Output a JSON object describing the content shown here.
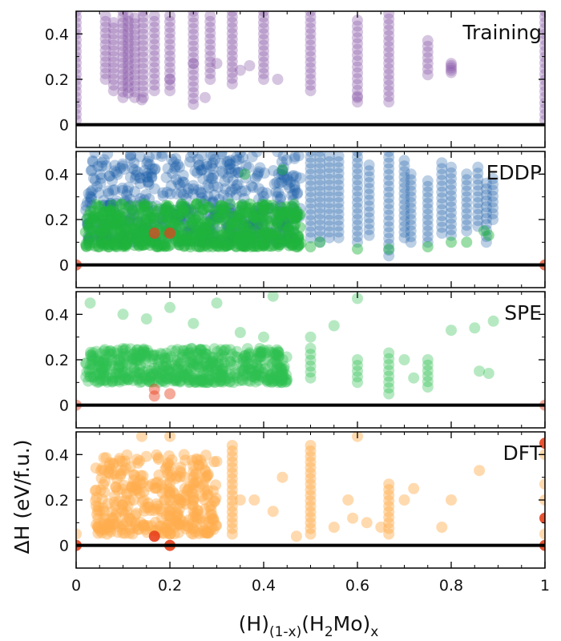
{
  "chart_data": {
    "type": "scatter",
    "xlabel": {
      "base": "(H)",
      "sub1": "(1-x)",
      "mid": "(H",
      "sub2": "2",
      "tail": "Mo)",
      "sub3": "x"
    },
    "ylabel": "ΔH (eV/f.u.)",
    "xlim": [
      0,
      1
    ],
    "ylim": [
      -0.1,
      0.5
    ],
    "x_ticks": [
      0,
      0.2,
      0.4,
      0.6,
      0.8,
      1
    ],
    "x_tick_labels": [
      "0",
      "0.2",
      "0.4",
      "0.6",
      "0.8",
      "1"
    ],
    "y_ticks": [
      0,
      0.2,
      0.4
    ],
    "y_tick_labels": [
      "0",
      "0.2",
      "0.4"
    ],
    "hull_line": {
      "y": 0,
      "color": "#000000"
    },
    "colors": {
      "training": "#8a5aa8",
      "eddp_blue": "#1f5fa8",
      "eddp_green": "#1fb33c",
      "spe": "#2fbf4f",
      "dft": "#ffad4d",
      "hull_red": "#e8401c"
    },
    "panels": [
      {
        "label": "Training",
        "series": [
          {
            "name": "training",
            "color": "#8a5aa8",
            "alpha": 0.35,
            "columns": [
              [
                0.0,
                0.02,
                0.5
              ],
              [
                0.0625,
                0.2,
                0.48
              ],
              [
                0.08,
                0.15,
                0.45
              ],
              [
                0.1,
                0.12,
                0.5
              ],
              [
                0.111,
                0.14,
                0.48
              ],
              [
                0.125,
                0.12,
                0.47
              ],
              [
                0.143,
                0.12,
                0.5
              ],
              [
                0.167,
                0.15,
                0.48
              ],
              [
                0.2,
                0.15,
                0.48
              ],
              [
                0.25,
                0.09,
                0.5
              ],
              [
                0.286,
                0.2,
                0.48
              ],
              [
                0.333,
                0.18,
                0.5
              ],
              [
                0.4,
                0.2,
                0.5
              ],
              [
                0.5,
                0.15,
                0.5
              ],
              [
                0.6,
                0.1,
                0.46
              ],
              [
                0.667,
                0.1,
                0.49
              ],
              [
                0.75,
                0.22,
                0.37
              ],
              [
                0.8,
                0.23,
                0.27
              ],
              [
                1.0,
                0.02,
                0.5
              ]
            ],
            "points": [
              [
                0.14,
                0.11
              ],
              [
                0.2,
                0.2
              ],
              [
                0.25,
                0.27
              ],
              [
                0.3,
                0.27
              ],
              [
                0.35,
                0.24
              ],
              [
                0.37,
                0.26
              ],
              [
                0.43,
                0.2
              ],
              [
                0.6,
                0.12
              ],
              [
                0.275,
                0.12
              ]
            ]
          }
        ]
      },
      {
        "label": "EDDP",
        "series": [
          {
            "name": "eddp-blue",
            "color": "#1f5fa8",
            "alpha": 0.3,
            "band": {
              "x0": 0.02,
              "x1": 0.48,
              "ymin": 0.1,
              "ymax": 0.5
            },
            "columns": [
              [
                0.5,
                0.12,
                0.5
              ],
              [
                0.52,
                0.1,
                0.5
              ],
              [
                0.54,
                0.12,
                0.48
              ],
              [
                0.56,
                0.12,
                0.48
              ],
              [
                0.6,
                0.1,
                0.5
              ],
              [
                0.625,
                0.13,
                0.44
              ],
              [
                0.667,
                0.04,
                0.5
              ],
              [
                0.7,
                0.12,
                0.46
              ],
              [
                0.714,
                0.1,
                0.4
              ],
              [
                0.75,
                0.1,
                0.37
              ],
              [
                0.78,
                0.14,
                0.45
              ],
              [
                0.8,
                0.13,
                0.43
              ],
              [
                0.833,
                0.15,
                0.4
              ],
              [
                0.857,
                0.17,
                0.43
              ],
              [
                0.875,
                0.1,
                0.36
              ],
              [
                0.889,
                0.2,
                0.38
              ]
            ]
          },
          {
            "name": "eddp-green",
            "color": "#1fb33c",
            "alpha": 0.45,
            "band": {
              "x0": 0.02,
              "x1": 0.48,
              "ymin": 0.08,
              "ymax": 0.27
            },
            "points": [
              [
                0.5,
                0.08
              ],
              [
                0.52,
                0.1
              ],
              [
                0.6,
                0.07
              ],
              [
                0.667,
                0.07
              ],
              [
                0.75,
                0.08
              ],
              [
                0.8,
                0.1
              ],
              [
                0.833,
                0.1
              ],
              [
                0.87,
                0.15
              ],
              [
                0.44,
                0.42
              ],
              [
                0.36,
                0.4
              ],
              [
                0.88,
                0.13
              ]
            ]
          },
          {
            "name": "eddp-hull",
            "color": "#e8401c",
            "alpha": 0.7,
            "points": [
              [
                0.0,
                0.0
              ],
              [
                1.0,
                0.0
              ],
              [
                0.167,
                0.14
              ],
              [
                0.2,
                0.14
              ]
            ]
          }
        ]
      },
      {
        "label": "SPE",
        "series": [
          {
            "name": "spe",
            "color": "#2fbf4f",
            "alpha": 0.35,
            "band": {
              "x0": 0.02,
              "x1": 0.45,
              "ymin": 0.1,
              "ymax": 0.25
            },
            "columns": [
              [
                0.5,
                0.12,
                0.25
              ],
              [
                0.6,
                0.1,
                0.2
              ],
              [
                0.667,
                0.05,
                0.23
              ],
              [
                0.75,
                0.08,
                0.2
              ]
            ],
            "points": [
              [
                0.03,
                0.45
              ],
              [
                0.1,
                0.4
              ],
              [
                0.15,
                0.38
              ],
              [
                0.2,
                0.43
              ],
              [
                0.25,
                0.36
              ],
              [
                0.3,
                0.45
              ],
              [
                0.42,
                0.48
              ],
              [
                0.6,
                0.47
              ],
              [
                0.8,
                0.33
              ],
              [
                0.85,
                0.34
              ],
              [
                0.89,
                0.37
              ],
              [
                0.86,
                0.15
              ],
              [
                0.88,
                0.14
              ],
              [
                0.55,
                0.35
              ],
              [
                0.7,
                0.2
              ],
              [
                0.72,
                0.12
              ],
              [
                0.5,
                0.3
              ],
              [
                0.4,
                0.3
              ],
              [
                0.35,
                0.32
              ]
            ]
          },
          {
            "name": "spe-hull",
            "color": "#e8401c",
            "alpha": 0.45,
            "points": [
              [
                0.0,
                0.0
              ],
              [
                1.0,
                0.0
              ],
              [
                0.167,
                0.07
              ],
              [
                0.167,
                0.04
              ],
              [
                0.2,
                0.05
              ]
            ]
          }
        ]
      },
      {
        "label": "DFT",
        "series": [
          {
            "name": "dft",
            "color": "#ffad4d",
            "alpha": 0.45,
            "band": {
              "x0": 0.04,
              "x1": 0.3,
              "ymin": 0.05,
              "ymax": 0.4
            },
            "columns": [
              [
                0.333,
                0.05,
                0.44
              ],
              [
                0.5,
                0.05,
                0.44
              ],
              [
                0.667,
                0.05,
                0.27
              ],
              [
                0.2,
                0.05,
                0.35
              ],
              [
                0.25,
                0.05,
                0.35
              ]
            ],
            "points": [
              [
                0.0,
                0.05
              ],
              [
                0.14,
                0.48
              ],
              [
                0.2,
                0.48
              ],
              [
                0.6,
                0.48
              ],
              [
                0.44,
                0.3
              ],
              [
                0.35,
                0.2
              ],
              [
                0.38,
                0.2
              ],
              [
                0.42,
                0.15
              ],
              [
                0.55,
                0.08
              ],
              [
                0.58,
                0.2
              ],
              [
                0.59,
                0.12
              ],
              [
                0.62,
                0.1
              ],
              [
                0.65,
                0.08
              ],
              [
                0.7,
                0.2
              ],
              [
                0.72,
                0.25
              ],
              [
                0.8,
                0.2
              ],
              [
                0.86,
                0.33
              ],
              [
                0.78,
                0.08
              ],
              [
                0.47,
                0.04
              ],
              [
                1.0,
                0.4
              ],
              [
                1.0,
                0.27
              ],
              [
                1.0,
                0.2
              ],
              [
                1.0,
                0.05
              ]
            ]
          },
          {
            "name": "dft-hull",
            "color": "#e8401c",
            "alpha": 0.9,
            "points": [
              [
                0.0,
                0.0
              ],
              [
                1.0,
                0.0
              ],
              [
                0.167,
                0.04
              ],
              [
                0.2,
                0.0
              ],
              [
                1.0,
                0.45
              ],
              [
                1.0,
                0.12
              ]
            ]
          }
        ]
      }
    ]
  }
}
